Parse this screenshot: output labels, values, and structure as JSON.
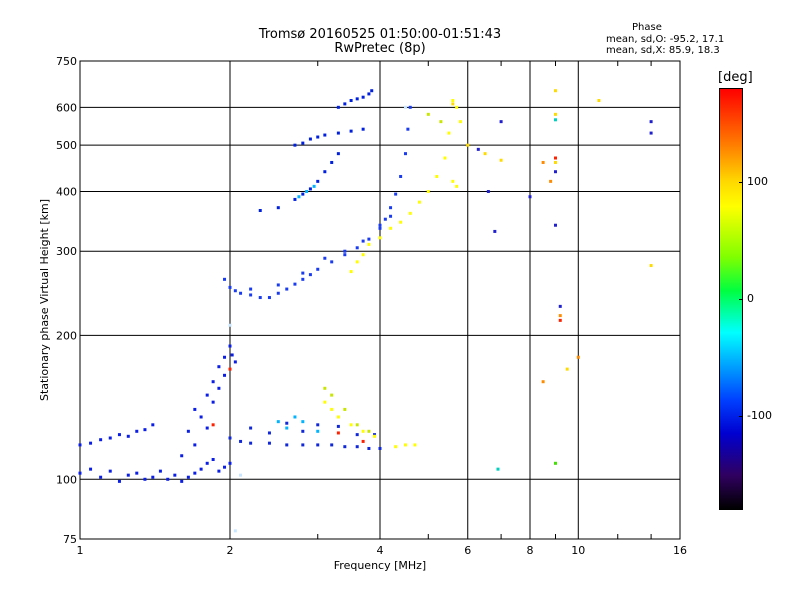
{
  "header": {
    "title_line1": "Tromsø 20160525 01:50:00-01:51:43",
    "title_line2": "RwPretec (8p)",
    "phase_title": "Phase",
    "phase_o": "mean, sd,O: -95.2, 17.1",
    "phase_x": "mean, sd,X:  85.9, 18.3"
  },
  "colorbar": {
    "unit": "[deg]",
    "ticks": [
      {
        "value": 100,
        "label": "100"
      },
      {
        "value": 0,
        "label": "0"
      },
      {
        "value": -100,
        "label": "-100"
      }
    ],
    "min": -180,
    "max": 180
  },
  "chart_data": {
    "type": "scatter",
    "title": "Tromsø 20160525 01:50:00-01:51:43",
    "subtitle": "RwPretec (8p)",
    "xlabel": "Frequency [MHz]",
    "ylabel": "Stationary phase Virtual Height [km]",
    "x_scale": "log",
    "y_scale": "log",
    "xlim": [
      1,
      16
    ],
    "ylim": [
      75,
      750
    ],
    "x_ticks": [
      1,
      2,
      4,
      6,
      8,
      10,
      16
    ],
    "y_ticks": [
      75,
      100,
      200,
      300,
      400,
      500,
      600,
      750
    ],
    "grid": true,
    "color_encoding": "phase [deg]",
    "series": [
      {
        "color": "#0a1ee6",
        "points": [
          [
            1.0,
            118
          ],
          [
            1.05,
            119
          ],
          [
            1.1,
            121
          ],
          [
            1.15,
            122
          ],
          [
            1.2,
            124
          ],
          [
            1.25,
            123
          ],
          [
            1.3,
            126
          ],
          [
            1.35,
            127
          ],
          [
            1.4,
            130
          ],
          [
            1.0,
            103
          ],
          [
            1.05,
            105
          ],
          [
            1.1,
            101
          ],
          [
            1.15,
            104
          ],
          [
            1.2,
            99
          ],
          [
            1.25,
            102
          ],
          [
            1.3,
            103
          ],
          [
            1.35,
            100
          ],
          [
            1.4,
            101
          ],
          [
            1.45,
            104
          ],
          [
            1.5,
            100
          ],
          [
            1.55,
            102
          ],
          [
            1.6,
            99
          ],
          [
            1.65,
            101
          ],
          [
            1.7,
            103
          ],
          [
            1.75,
            105
          ],
          [
            1.8,
            108
          ],
          [
            1.85,
            110
          ],
          [
            1.9,
            104
          ],
          [
            1.95,
            106
          ],
          [
            2.0,
            108
          ],
          [
            1.6,
            112
          ],
          [
            1.7,
            118
          ],
          [
            1.75,
            135
          ],
          [
            1.8,
            150
          ],
          [
            1.85,
            160
          ],
          [
            1.9,
            172
          ],
          [
            1.95,
            180
          ],
          [
            2.0,
            190
          ],
          [
            2.02,
            182
          ],
          [
            2.05,
            176
          ],
          [
            1.65,
            126
          ],
          [
            1.7,
            140
          ],
          [
            1.8,
            128
          ],
          [
            1.85,
            145
          ],
          [
            1.9,
            155
          ],
          [
            1.95,
            165
          ]
        ]
      },
      {
        "color": "#1028d8",
        "points": [
          [
            2.0,
            122
          ],
          [
            2.1,
            120
          ],
          [
            2.2,
            119
          ],
          [
            2.4,
            119
          ],
          [
            2.6,
            118
          ],
          [
            2.8,
            118
          ],
          [
            3.0,
            118
          ],
          [
            3.2,
            118
          ],
          [
            3.4,
            117
          ],
          [
            3.6,
            117
          ],
          [
            3.8,
            116
          ],
          [
            4.0,
            116
          ],
          [
            2.2,
            128
          ],
          [
            2.4,
            125
          ],
          [
            2.6,
            131
          ],
          [
            2.8,
            126
          ],
          [
            3.0,
            130
          ],
          [
            3.3,
            129
          ],
          [
            3.6,
            124
          ],
          [
            3.9,
            124
          ]
        ]
      },
      {
        "color": "#1a3cf0",
        "points": [
          [
            1.95,
            262
          ],
          [
            2.0,
            252
          ],
          [
            2.05,
            248
          ],
          [
            2.1,
            245
          ],
          [
            2.2,
            243
          ],
          [
            2.3,
            240
          ],
          [
            2.4,
            240
          ],
          [
            2.5,
            245
          ],
          [
            2.6,
            250
          ],
          [
            2.7,
            256
          ],
          [
            2.8,
            262
          ],
          [
            2.9,
            268
          ],
          [
            3.0,
            275
          ],
          [
            3.2,
            285
          ],
          [
            3.4,
            295
          ],
          [
            3.6,
            305
          ],
          [
            3.8,
            318
          ],
          [
            4.0,
            335
          ],
          [
            4.1,
            350
          ],
          [
            4.2,
            370
          ],
          [
            4.3,
            395
          ],
          [
            4.4,
            430
          ],
          [
            4.5,
            480
          ],
          [
            4.55,
            540
          ],
          [
            4.6,
            600
          ],
          [
            2.2,
            250
          ],
          [
            2.5,
            255
          ],
          [
            2.8,
            270
          ],
          [
            3.1,
            290
          ],
          [
            3.4,
            300
          ],
          [
            3.7,
            315
          ],
          [
            4.0,
            340
          ],
          [
            4.2,
            355
          ]
        ]
      },
      {
        "color": "#0020e0",
        "points": [
          [
            2.3,
            365
          ],
          [
            2.5,
            370
          ],
          [
            2.7,
            385
          ],
          [
            2.8,
            395
          ],
          [
            2.9,
            405
          ],
          [
            3.0,
            420
          ],
          [
            3.1,
            440
          ],
          [
            3.2,
            460
          ],
          [
            3.3,
            480
          ],
          [
            2.7,
            500
          ],
          [
            2.8,
            505
          ],
          [
            2.9,
            515
          ],
          [
            3.0,
            520
          ],
          [
            3.1,
            525
          ],
          [
            3.3,
            530
          ],
          [
            3.5,
            535
          ],
          [
            3.7,
            540
          ],
          [
            3.3,
            600
          ],
          [
            3.4,
            610
          ],
          [
            3.5,
            620
          ],
          [
            3.6,
            625
          ],
          [
            3.7,
            630
          ],
          [
            3.8,
            640
          ],
          [
            3.85,
            650
          ]
        ]
      },
      {
        "color": "#00b4ff",
        "points": [
          [
            2.6,
            128
          ],
          [
            2.8,
            132
          ],
          [
            3.0,
            126
          ],
          [
            2.5,
            132
          ],
          [
            2.7,
            135
          ],
          [
            2.75,
            390
          ],
          [
            2.85,
            400
          ],
          [
            2.95,
            410
          ]
        ]
      },
      {
        "color": "#ffff00",
        "points": [
          [
            3.1,
            145
          ],
          [
            3.2,
            140
          ],
          [
            3.3,
            135
          ],
          [
            3.5,
            130
          ],
          [
            3.7,
            126
          ],
          [
            3.9,
            123
          ],
          [
            4.3,
            117
          ],
          [
            4.5,
            118
          ],
          [
            4.7,
            118
          ],
          [
            3.5,
            272
          ],
          [
            3.6,
            285
          ],
          [
            3.7,
            295
          ],
          [
            3.8,
            310
          ],
          [
            4.0,
            320
          ],
          [
            4.2,
            335
          ],
          [
            4.4,
            345
          ],
          [
            4.6,
            360
          ],
          [
            4.8,
            380
          ],
          [
            5.0,
            400
          ],
          [
            5.2,
            430
          ],
          [
            5.4,
            470
          ],
          [
            5.5,
            530
          ],
          [
            5.6,
            620
          ],
          [
            5.7,
            600
          ],
          [
            5.8,
            560
          ],
          [
            5.6,
            420
          ],
          [
            5.7,
            410
          ]
        ]
      },
      {
        "color": "#c8e600",
        "points": [
          [
            3.1,
            155
          ],
          [
            3.2,
            150
          ],
          [
            3.4,
            140
          ],
          [
            3.6,
            130
          ],
          [
            3.8,
            126
          ],
          [
            5.0,
            580
          ],
          [
            5.3,
            560
          ]
        ]
      },
      {
        "color": "#ffdc00",
        "points": [
          [
            5.6,
            610
          ],
          [
            6.0,
            500
          ],
          [
            6.5,
            480
          ],
          [
            7.0,
            465
          ],
          [
            9.0,
            650
          ],
          [
            9.0,
            580
          ],
          [
            9.0,
            460
          ],
          [
            11.0,
            620
          ],
          [
            14.0,
            280
          ],
          [
            9.5,
            170
          ]
        ]
      },
      {
        "color": "#ff8c00",
        "points": [
          [
            8.5,
            460
          ],
          [
            8.8,
            420
          ],
          [
            9.2,
            220
          ],
          [
            8.5,
            160
          ],
          [
            10.0,
            180
          ]
        ]
      },
      {
        "color": "#2020d0",
        "points": [
          [
            6.3,
            490
          ],
          [
            6.6,
            400
          ],
          [
            6.8,
            330
          ],
          [
            7.0,
            560
          ],
          [
            8.0,
            390
          ],
          [
            9.0,
            440
          ],
          [
            9.0,
            340
          ],
          [
            9.2,
            230
          ],
          [
            14.0,
            560
          ],
          [
            14.0,
            530
          ]
        ]
      },
      {
        "color": "#00d0c0",
        "points": [
          [
            6.9,
            105
          ],
          [
            9.0,
            565
          ]
        ]
      },
      {
        "color": "#40e000",
        "points": [
          [
            9.0,
            108
          ]
        ]
      },
      {
        "color": "#ff2000",
        "points": [
          [
            1.85,
            130
          ],
          [
            2.0,
            170
          ],
          [
            3.3,
            125
          ],
          [
            3.7,
            120
          ],
          [
            9.2,
            215
          ],
          [
            9.0,
            470
          ]
        ]
      },
      {
        "color": "#c8e6ff",
        "points": [
          [
            2.0,
            210
          ],
          [
            2.05,
            78
          ],
          [
            4.5,
            600
          ],
          [
            2.1,
            102
          ]
        ]
      }
    ]
  }
}
